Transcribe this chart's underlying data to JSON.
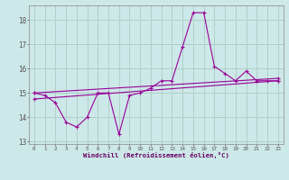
{
  "xlabel": "Windchill (Refroidissement éolien,°C)",
  "background_color": "#cde8e8",
  "grid_color": "#b0d0c8",
  "line_color": "#990099",
  "x_hours": [
    0,
    1,
    2,
    3,
    4,
    5,
    6,
    7,
    8,
    9,
    10,
    11,
    12,
    13,
    14,
    15,
    16,
    17,
    18,
    19,
    20,
    21,
    22,
    23
  ],
  "series1": [
    15.0,
    14.9,
    14.6,
    13.8,
    13.6,
    14.0,
    15.0,
    15.0,
    13.3,
    14.9,
    15.0,
    15.2,
    15.5,
    15.5,
    16.9,
    18.3,
    18.3,
    16.1,
    15.8,
    15.5,
    15.9,
    15.5,
    15.5,
    15.5
  ],
  "series2_x": [
    0,
    23
  ],
  "series2_y": [
    14.75,
    15.5
  ],
  "series3_x": [
    0,
    23
  ],
  "series3_y": [
    15.0,
    15.6
  ],
  "ylim": [
    12.9,
    18.6
  ],
  "xlim": [
    -0.5,
    23.5
  ],
  "ytick_values": [
    13,
    14,
    15,
    16,
    17,
    18
  ],
  "xtick_labels": [
    "0",
    "1",
    "2",
    "3",
    "4",
    "5",
    "6",
    "7",
    "8",
    "9",
    "10",
    "11",
    "12",
    "13",
    "14",
    "15",
    "16",
    "17",
    "18",
    "19",
    "20",
    "21",
    "22",
    "23"
  ]
}
